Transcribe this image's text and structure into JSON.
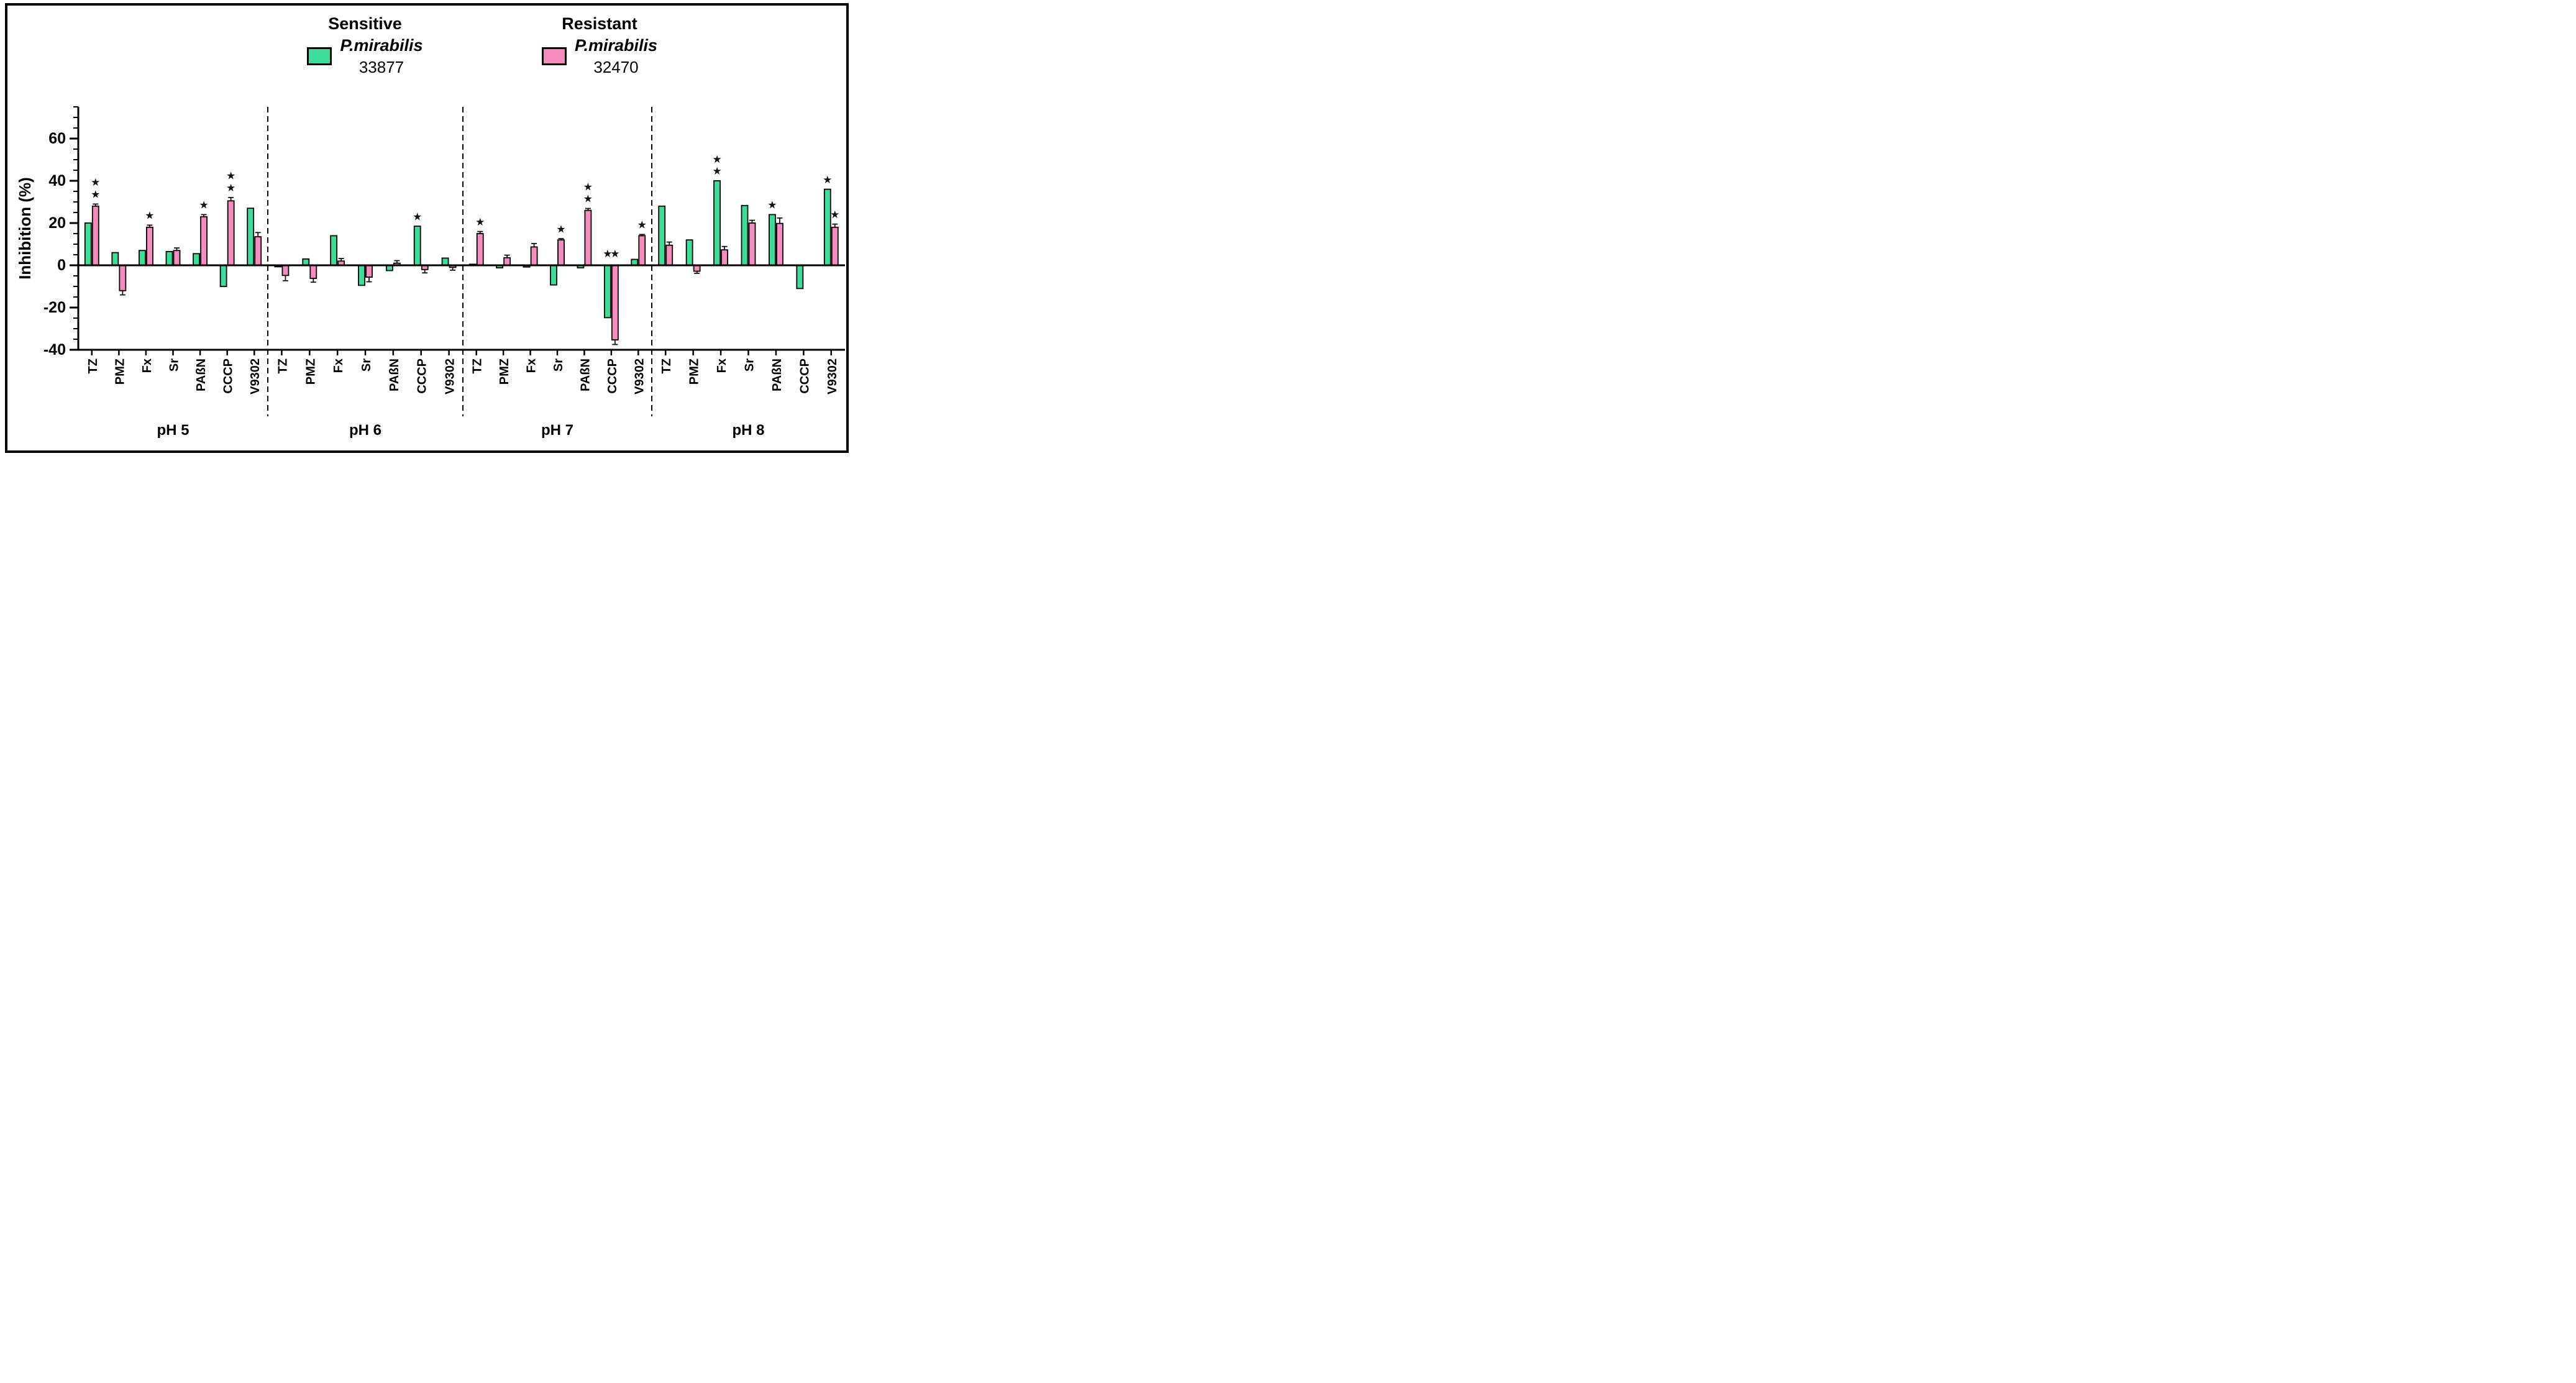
{
  "figure": {
    "background": "#ffffff",
    "border_color": "#000000"
  },
  "chart_data": {
    "type": "bar",
    "ylabel": "Inhibition (%)",
    "ylim": [
      -40,
      75
    ],
    "yticks": [
      -40,
      -20,
      0,
      20,
      40,
      60
    ],
    "ytick_minor_step": 5,
    "grid": false,
    "legend_position": "top",
    "star_symbol": "★",
    "categories": [
      "TZ",
      "PMZ",
      "Fx",
      "Sr",
      "PAßN",
      "CCCP",
      "V9302"
    ],
    "series_meta": {
      "sensitive": {
        "title": "Sensitive",
        "species": "P.mirabilis",
        "strain": "33877",
        "color": "#3BDE98"
      },
      "resistant": {
        "title": "Resistant",
        "species": "P.mirabilis",
        "strain": "32470",
        "color": "#F58BBE"
      }
    },
    "groups": [
      {
        "label": "pH 5",
        "values": [
          {
            "cat": "TZ",
            "sensitive": 20,
            "resistant": 28,
            "r_err": 1,
            "s_stars": 0,
            "r_stars": 2
          },
          {
            "cat": "PMZ",
            "sensitive": 6,
            "resistant": -12,
            "r_err": 2,
            "s_stars": 0,
            "r_stars": 0
          },
          {
            "cat": "Fx",
            "sensitive": 7,
            "resistant": 18,
            "r_err": 1,
            "s_stars": 0,
            "r_stars": 1
          },
          {
            "cat": "Sr",
            "sensitive": 6.5,
            "resistant": 7,
            "r_err": 1.2,
            "s_stars": 0,
            "r_stars": 0
          },
          {
            "cat": "PAßN",
            "sensitive": 5.5,
            "resistant": 23,
            "r_err": 1,
            "s_stars": 0,
            "r_stars": 1
          },
          {
            "cat": "CCCP",
            "sensitive": -10,
            "resistant": 30.5,
            "r_err": 1.6,
            "s_stars": 0,
            "r_stars": 2
          },
          {
            "cat": "V9302",
            "sensitive": 27,
            "resistant": 13.5,
            "r_err": 2,
            "s_stars": 0,
            "r_stars": 0
          }
        ]
      },
      {
        "label": "pH 6",
        "values": [
          {
            "cat": "TZ",
            "sensitive": -0.7,
            "resistant": -4.8,
            "r_err": 2.5,
            "s_stars": 0,
            "r_stars": 0
          },
          {
            "cat": "PMZ",
            "sensitive": 3,
            "resistant": -6.2,
            "r_err": 1.8,
            "s_stars": 0,
            "r_stars": 0
          },
          {
            "cat": "Fx",
            "sensitive": 14,
            "resistant": 2,
            "r_err": 1.2,
            "s_stars": 0,
            "r_stars": 0
          },
          {
            "cat": "Sr",
            "sensitive": -9.5,
            "resistant": -5.6,
            "r_err": 2.2,
            "s_stars": 0,
            "r_stars": 0
          },
          {
            "cat": "PAßN",
            "sensitive": -2.5,
            "resistant": 1,
            "r_err": 1.2,
            "s_stars": 0,
            "r_stars": 0
          },
          {
            "cat": "CCCP",
            "sensitive": 18.5,
            "resistant": -2,
            "r_err": 1.6,
            "s_stars": 1,
            "r_stars": 0
          },
          {
            "cat": "V9302",
            "sensitive": 3.4,
            "resistant": -1,
            "r_err": 1.3,
            "s_stars": 0,
            "r_stars": 0
          }
        ]
      },
      {
        "label": "pH 7",
        "values": [
          {
            "cat": "TZ",
            "sensitive": 0.5,
            "resistant": 15,
            "r_err": 1,
            "s_stars": 0,
            "r_stars": 1
          },
          {
            "cat": "PMZ",
            "sensitive": -1.2,
            "resistant": 3.6,
            "r_err": 1.2,
            "s_stars": 0,
            "r_stars": 0
          },
          {
            "cat": "Fx",
            "sensitive": -0.8,
            "resistant": 8.7,
            "r_err": 1.6,
            "s_stars": 0,
            "r_stars": 0
          },
          {
            "cat": "Sr",
            "sensitive": -9.3,
            "resistant": 12,
            "r_err": 0.6,
            "s_stars": 0,
            "r_stars": 1
          },
          {
            "cat": "PAßN",
            "sensitive": -1.2,
            "resistant": 26,
            "r_err": 0.9,
            "s_stars": 0,
            "r_stars": 2
          },
          {
            "cat": "CCCP",
            "sensitive": -24.8,
            "resistant": -35.3,
            "r_err": 2.2,
            "s_stars": 1,
            "r_stars": 1
          },
          {
            "cat": "V9302",
            "sensitive": 2.8,
            "resistant": 14,
            "r_err": 0.6,
            "s_stars": 0,
            "r_stars": 1
          }
        ]
      },
      {
        "label": "pH 8",
        "values": [
          {
            "cat": "TZ",
            "sensitive": 28,
            "resistant": 9.5,
            "r_err": 1.5,
            "s_stars": 0,
            "r_stars": 0
          },
          {
            "cat": "PMZ",
            "sensitive": 12,
            "resistant": -2.8,
            "r_err": 1,
            "s_stars": 0,
            "r_stars": 0
          },
          {
            "cat": "Fx",
            "sensitive": 40,
            "resistant": 7.3,
            "r_err": 1.6,
            "s_stars": 2,
            "r_stars": 0
          },
          {
            "cat": "Sr",
            "sensitive": 28.3,
            "resistant": 20,
            "r_err": 1.3,
            "s_stars": 0,
            "r_stars": 0
          },
          {
            "cat": "PAßN",
            "sensitive": 24,
            "resistant": 19.8,
            "r_err": 2.6,
            "s_stars": 1,
            "r_stars": 0
          },
          {
            "cat": "CCCP",
            "sensitive": -11,
            "resistant": 0,
            "r_err": 0,
            "s_stars": 0,
            "r_stars": 0
          },
          {
            "cat": "V9302",
            "sensitive": 36,
            "resistant": 18,
            "r_err": 1.5,
            "s_stars": 1,
            "r_stars": 1
          }
        ]
      }
    ]
  }
}
